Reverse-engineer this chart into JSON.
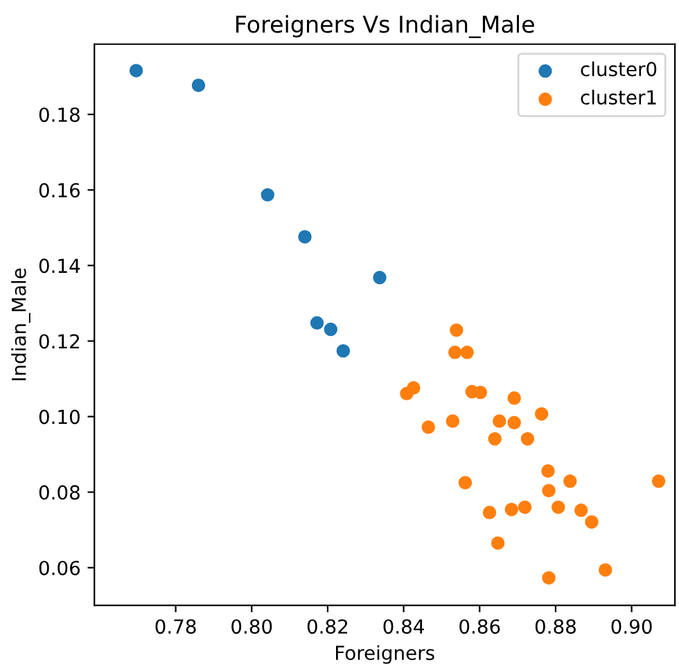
{
  "chart_data": {
    "type": "scatter",
    "title": "Foreigners Vs Indian_Male",
    "xlabel": "Foreigners",
    "ylabel": "Indian_Male",
    "series": [
      {
        "name": "cluster0",
        "color": "#1f77b4",
        "x": [
          0.7696,
          0.786,
          0.8042,
          0.814,
          0.8337,
          0.8172,
          0.8208,
          0.8241
        ],
        "values": [
          0.1916,
          0.1877,
          0.1587,
          0.1476,
          0.1368,
          0.1248,
          0.1231,
          0.1174
        ]
      },
      {
        "name": "cluster1",
        "color": "#ff7f0e",
        "x": [
          0.8539,
          0.8535,
          0.8567,
          0.858,
          0.8602,
          0.8691,
          0.8763,
          0.8529,
          0.8652,
          0.8691,
          0.8465,
          0.864,
          0.8726,
          0.8426,
          0.8408,
          0.878,
          0.8562,
          0.8838,
          0.9071,
          0.8782,
          0.8626,
          0.8684,
          0.8719,
          0.8807,
          0.8867,
          0.8895,
          0.8648,
          0.8931,
          0.8782
        ],
        "values": [
          0.1229,
          0.117,
          0.117,
          0.1066,
          0.1064,
          0.1049,
          0.1007,
          0.0988,
          0.0988,
          0.0984,
          0.0972,
          0.0941,
          0.0941,
          0.1076,
          0.1061,
          0.0856,
          0.0825,
          0.0829,
          0.0829,
          0.0804,
          0.0746,
          0.0754,
          0.076,
          0.076,
          0.0752,
          0.0721,
          0.0665,
          0.0594,
          0.0573
        ]
      }
    ],
    "xlim": [
      0.7586,
      0.9114
    ],
    "ylim": [
      0.05,
      0.1986
    ],
    "xticks": [
      {
        "value": 0.78,
        "label": "0.78"
      },
      {
        "value": 0.8,
        "label": "0.80"
      },
      {
        "value": 0.82,
        "label": "0.82"
      },
      {
        "value": 0.84,
        "label": "0.84"
      },
      {
        "value": 0.86,
        "label": "0.86"
      },
      {
        "value": 0.88,
        "label": "0.88"
      },
      {
        "value": 0.9,
        "label": "0.90"
      }
    ],
    "yticks": [
      {
        "value": 0.06,
        "label": "0.06"
      },
      {
        "value": 0.08,
        "label": "0.08"
      },
      {
        "value": 0.1,
        "label": "0.10"
      },
      {
        "value": 0.12,
        "label": "0.12"
      },
      {
        "value": 0.14,
        "label": "0.14"
      },
      {
        "value": 0.16,
        "label": "0.16"
      },
      {
        "value": 0.18,
        "label": "0.18"
      }
    ],
    "grid": false,
    "legend": "top right",
    "marker": "circle"
  }
}
